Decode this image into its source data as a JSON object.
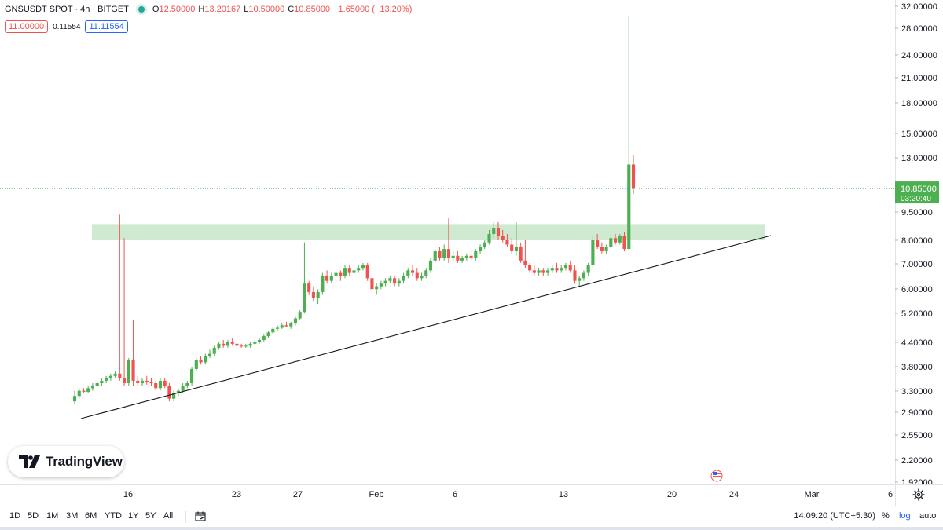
{
  "header": {
    "symbol": "GNSUSDT SPOT · 4h · BITGET",
    "open_label": "O",
    "open": "12.50000",
    "high_label": "H",
    "high": "13.20167",
    "low_label": "L",
    "low": "10.50000",
    "close_label": "C",
    "close": "10.85000",
    "change": "−1.65000 (−13.20%)"
  },
  "quote": {
    "bid": "11.00000",
    "spread": "0.11554",
    "ask": "11.11554"
  },
  "price_tag": {
    "price": "10.85000",
    "countdown": "03:20:40"
  },
  "logo": {
    "text": "TradingView"
  },
  "bottom_bar": {
    "ranges": [
      "1D",
      "5D",
      "1M",
      "3M",
      "6M",
      "YTD",
      "1Y",
      "5Y",
      "All"
    ],
    "clock": "14:09:20 (UTC+5:30)",
    "percent": "%",
    "log": "log",
    "auto": "auto"
  },
  "colors": {
    "up": "#4caf50",
    "down": "#ef5350",
    "zone": "#c8e6c9",
    "accent": "#2962ff"
  },
  "chart_data": {
    "type": "candlestick",
    "scale": "log",
    "timeframe": "4h",
    "y_ticks": [
      "32.00000",
      "28.00000",
      "24.00000",
      "21.00000",
      "18.00000",
      "15.00000",
      "13.00000",
      "9.50000",
      "8.00000",
      "7.00000",
      "6.00000",
      "5.20000",
      "4.40000",
      "3.80000",
      "3.30000",
      "2.90000",
      "2.55000",
      "2.20000",
      "1.92000"
    ],
    "x_ticks": [
      "16",
      "23",
      "27",
      "Feb",
      "6",
      "13",
      "20",
      "24",
      "Mar",
      "6"
    ],
    "last_close": 10.85,
    "resistance_zone": [
      8.0,
      8.8
    ],
    "trendline": {
      "from": [
        "Jan 12",
        2.85
      ],
      "to": [
        "Feb 26",
        8.2
      ]
    },
    "candles": [
      [
        3.1,
        3.3,
        3.05,
        3.2
      ],
      [
        3.2,
        3.35,
        3.15,
        3.3
      ],
      [
        3.3,
        3.35,
        3.25,
        3.28
      ],
      [
        3.28,
        3.4,
        3.25,
        3.35
      ],
      [
        3.35,
        3.45,
        3.3,
        3.4
      ],
      [
        3.4,
        3.5,
        3.38,
        3.45
      ],
      [
        3.45,
        3.55,
        3.4,
        3.5
      ],
      [
        3.5,
        3.6,
        3.45,
        3.55
      ],
      [
        3.55,
        3.65,
        3.5,
        3.6
      ],
      [
        3.6,
        3.7,
        3.55,
        3.65
      ],
      [
        3.65,
        9.3,
        3.5,
        3.55
      ],
      [
        3.55,
        8.1,
        3.4,
        3.45
      ],
      [
        3.45,
        4.0,
        3.4,
        3.95
      ],
      [
        3.95,
        5.0,
        3.4,
        3.5
      ],
      [
        3.5,
        3.6,
        3.4,
        3.45
      ],
      [
        3.45,
        3.55,
        3.4,
        3.5
      ],
      [
        3.5,
        3.6,
        3.42,
        3.47
      ],
      [
        3.47,
        3.55,
        3.4,
        3.45
      ],
      [
        3.45,
        3.5,
        3.3,
        3.35
      ],
      [
        3.35,
        3.55,
        3.3,
        3.5
      ],
      [
        3.5,
        3.55,
        3.35,
        3.4
      ],
      [
        3.4,
        3.45,
        3.1,
        3.15
      ],
      [
        3.15,
        3.3,
        3.1,
        3.25
      ],
      [
        3.25,
        3.35,
        3.2,
        3.3
      ],
      [
        3.3,
        3.45,
        3.25,
        3.4
      ],
      [
        3.4,
        3.5,
        3.35,
        3.45
      ],
      [
        3.45,
        3.8,
        3.4,
        3.75
      ],
      [
        3.75,
        4.0,
        3.7,
        3.95
      ],
      [
        3.95,
        4.05,
        3.85,
        3.9
      ],
      [
        3.9,
        4.1,
        3.85,
        4.05
      ],
      [
        4.05,
        4.2,
        4.0,
        4.1
      ],
      [
        4.1,
        4.3,
        4.05,
        4.25
      ],
      [
        4.25,
        4.4,
        4.2,
        4.35
      ],
      [
        4.35,
        4.45,
        4.25,
        4.3
      ],
      [
        4.3,
        4.45,
        4.25,
        4.4
      ],
      [
        4.4,
        4.5,
        4.3,
        4.35
      ],
      [
        4.35,
        4.4,
        4.25,
        4.3
      ],
      [
        4.3,
        4.35,
        4.25,
        4.28
      ],
      [
        4.28,
        4.35,
        4.25,
        4.3
      ],
      [
        4.3,
        4.4,
        4.25,
        4.35
      ],
      [
        4.35,
        4.45,
        4.3,
        4.4
      ],
      [
        4.4,
        4.5,
        4.35,
        4.45
      ],
      [
        4.45,
        4.6,
        4.4,
        4.55
      ],
      [
        4.55,
        4.7,
        4.5,
        4.65
      ],
      [
        4.65,
        4.8,
        4.6,
        4.75
      ],
      [
        4.75,
        4.85,
        4.7,
        4.78
      ],
      [
        4.78,
        4.9,
        4.75,
        4.85
      ],
      [
        4.85,
        4.95,
        4.8,
        4.82
      ],
      [
        4.82,
        4.95,
        4.75,
        4.9
      ],
      [
        4.9,
        5.1,
        4.85,
        5.05
      ],
      [
        5.05,
        5.3,
        5.0,
        5.25
      ],
      [
        5.25,
        7.9,
        5.2,
        6.2
      ],
      [
        6.2,
        6.3,
        5.8,
        5.9
      ],
      [
        5.9,
        6.1,
        5.6,
        5.7
      ],
      [
        5.7,
        6.0,
        5.5,
        5.9
      ],
      [
        5.9,
        6.6,
        5.8,
        6.5
      ],
      [
        6.5,
        6.7,
        6.2,
        6.3
      ],
      [
        6.3,
        6.6,
        6.2,
        6.5
      ],
      [
        6.5,
        6.8,
        6.4,
        6.6
      ],
      [
        6.6,
        6.7,
        6.3,
        6.5
      ],
      [
        6.5,
        6.9,
        6.4,
        6.8
      ],
      [
        6.8,
        6.9,
        6.5,
        6.6
      ],
      [
        6.6,
        6.8,
        6.5,
        6.7
      ],
      [
        6.7,
        6.9,
        6.6,
        6.8
      ],
      [
        6.8,
        7.0,
        6.7,
        6.9
      ],
      [
        6.9,
        7.0,
        6.3,
        6.4
      ],
      [
        6.4,
        6.5,
        5.9,
        6.0
      ],
      [
        6.0,
        6.2,
        5.8,
        6.1
      ],
      [
        6.1,
        6.3,
        6.0,
        6.2
      ],
      [
        6.2,
        6.4,
        6.1,
        6.3
      ],
      [
        6.3,
        6.5,
        6.2,
        6.4
      ],
      [
        6.4,
        6.5,
        6.1,
        6.2
      ],
      [
        6.2,
        6.4,
        6.1,
        6.3
      ],
      [
        6.3,
        6.6,
        6.2,
        6.5
      ],
      [
        6.5,
        6.8,
        6.4,
        6.7
      ],
      [
        6.7,
        6.9,
        6.5,
        6.6
      ],
      [
        6.6,
        6.8,
        6.3,
        6.4
      ],
      [
        6.4,
        6.6,
        6.3,
        6.5
      ],
      [
        6.5,
        6.8,
        6.4,
        6.7
      ],
      [
        6.7,
        7.2,
        6.6,
        7.1
      ],
      [
        7.1,
        7.6,
        7.0,
        7.5
      ],
      [
        7.5,
        7.7,
        7.1,
        7.2
      ],
      [
        7.2,
        7.8,
        7.1,
        7.6
      ],
      [
        7.6,
        9.1,
        7.0,
        7.2
      ],
      [
        7.2,
        7.5,
        7.1,
        7.3
      ],
      [
        7.3,
        7.5,
        7.0,
        7.1
      ],
      [
        7.1,
        7.3,
        7.0,
        7.2
      ],
      [
        7.2,
        7.4,
        7.1,
        7.3
      ],
      [
        7.3,
        7.5,
        7.1,
        7.2
      ],
      [
        7.2,
        7.6,
        7.1,
        7.5
      ],
      [
        7.5,
        7.8,
        7.4,
        7.7
      ],
      [
        7.7,
        8.0,
        7.6,
        7.9
      ],
      [
        7.9,
        8.5,
        7.8,
        8.3
      ],
      [
        8.3,
        8.9,
        8.1,
        8.6
      ],
      [
        8.6,
        8.9,
        8.0,
        8.2
      ],
      [
        8.2,
        8.5,
        7.9,
        8.0
      ],
      [
        8.0,
        8.3,
        7.7,
        7.8
      ],
      [
        7.8,
        8.1,
        7.4,
        7.5
      ],
      [
        7.5,
        8.9,
        7.3,
        7.7
      ],
      [
        7.7,
        7.9,
        7.0,
        7.1
      ],
      [
        7.1,
        8.0,
        6.8,
        6.9
      ],
      [
        6.9,
        7.0,
        6.6,
        6.7
      ],
      [
        6.7,
        6.9,
        6.5,
        6.6
      ],
      [
        6.6,
        6.8,
        6.5,
        6.7
      ],
      [
        6.7,
        6.8,
        6.5,
        6.6
      ],
      [
        6.6,
        6.8,
        6.5,
        6.7
      ],
      [
        6.7,
        6.9,
        6.6,
        6.8
      ],
      [
        6.8,
        7.0,
        6.6,
        6.7
      ],
      [
        6.7,
        6.9,
        6.6,
        6.8
      ],
      [
        6.8,
        7.0,
        6.7,
        6.9
      ],
      [
        6.9,
        7.1,
        6.6,
        6.7
      ],
      [
        6.7,
        6.9,
        6.2,
        6.3
      ],
      [
        6.3,
        6.5,
        6.1,
        6.4
      ],
      [
        6.4,
        6.7,
        6.3,
        6.6
      ],
      [
        6.6,
        7.0,
        6.5,
        6.9
      ],
      [
        6.9,
        8.2,
        6.8,
        8.0
      ],
      [
        8.0,
        8.3,
        7.6,
        7.7
      ],
      [
        7.7,
        7.9,
        7.4,
        7.5
      ],
      [
        7.5,
        7.8,
        7.4,
        7.7
      ],
      [
        7.7,
        8.2,
        7.6,
        8.1
      ],
      [
        8.1,
        8.3,
        7.8,
        7.9
      ],
      [
        7.9,
        8.3,
        7.8,
        8.2
      ],
      [
        8.2,
        8.4,
        7.5,
        7.6
      ],
      [
        7.6,
        30.0,
        7.6,
        12.5
      ],
      [
        12.5,
        13.2,
        10.5,
        10.85
      ]
    ]
  }
}
